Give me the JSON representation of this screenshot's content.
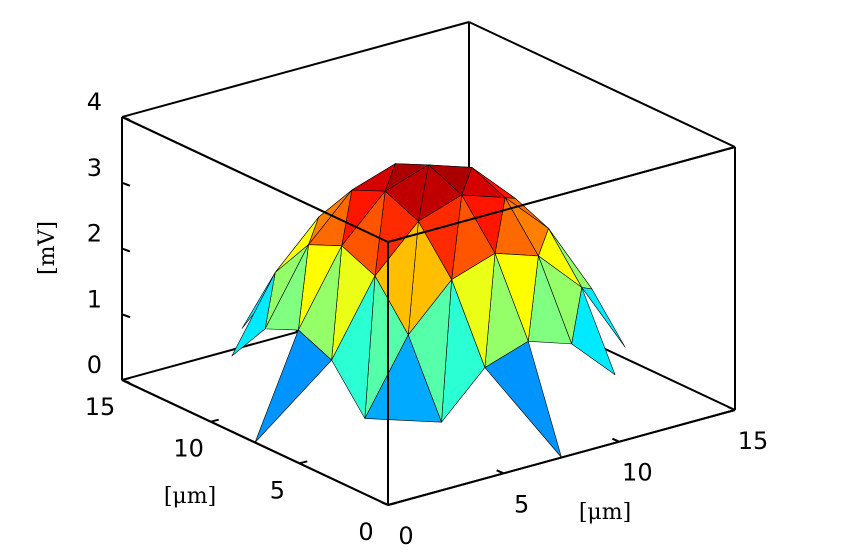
{
  "chart_data": {
    "type": "surface",
    "x": [
      0,
      1.875,
      3.75,
      5.625,
      7.5,
      9.375,
      11.25,
      13.125,
      15
    ],
    "y": [
      0,
      1.875,
      3.75,
      5.625,
      7.5,
      9.375,
      11.25,
      13.125,
      15
    ],
    "z": [
      [
        null,
        null,
        null,
        null,
        0,
        null,
        null,
        null,
        null
      ],
      [
        null,
        null,
        0.66,
        1.31,
        1.53,
        1.31,
        0.66,
        null,
        null
      ],
      [
        null,
        0.66,
        1.75,
        2.41,
        2.63,
        2.41,
        1.75,
        0.66,
        null
      ],
      [
        null,
        1.31,
        2.41,
        3.06,
        3.28,
        3.06,
        2.41,
        1.31,
        null
      ],
      [
        0,
        1.53,
        2.63,
        3.28,
        3.5,
        3.28,
        2.63,
        1.53,
        0
      ],
      [
        null,
        1.31,
        2.41,
        3.06,
        3.28,
        3.06,
        2.41,
        1.31,
        null
      ],
      [
        null,
        0.66,
        1.75,
        2.41,
        2.63,
        2.41,
        1.75,
        0.66,
        null
      ],
      [
        null,
        null,
        0.66,
        1.31,
        1.53,
        1.31,
        0.66,
        null,
        null
      ],
      [
        null,
        null,
        null,
        null,
        0,
        null,
        null,
        null,
        null
      ]
    ],
    "xlim": [
      0,
      15
    ],
    "ylim": [
      0,
      15
    ],
    "zlim": [
      0,
      4
    ],
    "xticks": [
      0,
      5,
      10,
      15
    ],
    "yticks": [
      0,
      5,
      10,
      15
    ],
    "zticks": [
      0,
      1,
      2,
      3,
      4
    ],
    "xlabel": "[μm]",
    "ylabel": "[μm]",
    "zlabel": "[mV]",
    "colormap": "jet",
    "edgecolor": "#000000"
  }
}
